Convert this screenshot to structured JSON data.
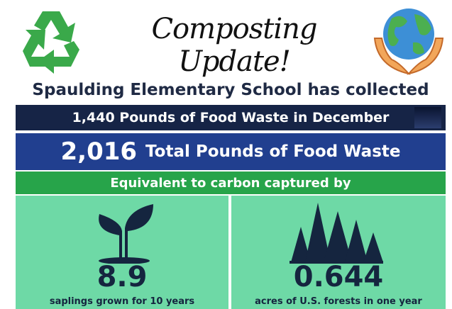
{
  "header": {
    "title": "Composting Update!"
  },
  "subtitle": "Spaulding Elementary School has collected",
  "monthly": "1,440 Pounds of Food Waste in December",
  "total": {
    "value": "2,016",
    "label": "Total Pounds of Food Waste"
  },
  "equivalent": "Equivalent to carbon captured by",
  "stats": [
    {
      "value": "8.9",
      "label": "saplings grown for 10 years"
    },
    {
      "value": "0.644",
      "label": "acres of U.S. forests in one year"
    }
  ]
}
